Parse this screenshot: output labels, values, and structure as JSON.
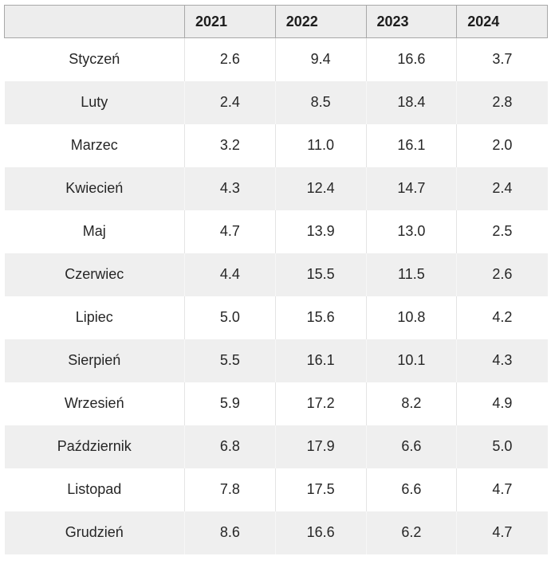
{
  "table": {
    "columns": [
      "",
      "2021",
      "2022",
      "2023",
      "2024"
    ],
    "rows": [
      {
        "month": "Styczeń",
        "values": [
          "2.6",
          "9.4",
          "16.6",
          "3.7"
        ]
      },
      {
        "month": "Luty",
        "values": [
          "2.4",
          "8.5",
          "18.4",
          "2.8"
        ]
      },
      {
        "month": "Marzec",
        "values": [
          "3.2",
          "11.0",
          "16.1",
          "2.0"
        ]
      },
      {
        "month": "Kwiecień",
        "values": [
          "4.3",
          "12.4",
          "14.7",
          "2.4"
        ]
      },
      {
        "month": "Maj",
        "values": [
          "4.7",
          "13.9",
          "13.0",
          "2.5"
        ]
      },
      {
        "month": "Czerwiec",
        "values": [
          "4.4",
          "15.5",
          "11.5",
          "2.6"
        ]
      },
      {
        "month": "Lipiec",
        "values": [
          "5.0",
          "15.6",
          "10.8",
          "4.2"
        ]
      },
      {
        "month": "Sierpień",
        "values": [
          "5.5",
          "16.1",
          "10.1",
          "4.3"
        ]
      },
      {
        "month": "Wrzesień",
        "values": [
          "5.9",
          "17.2",
          "8.2",
          "4.9"
        ]
      },
      {
        "month": "Październik",
        "values": [
          "6.8",
          "17.9",
          "6.6",
          "5.0"
        ]
      },
      {
        "month": "Listopad",
        "values": [
          "7.8",
          "17.5",
          "6.6",
          "4.7"
        ]
      },
      {
        "month": "Grudzień",
        "values": [
          "8.6",
          "16.6",
          "6.2",
          "4.7"
        ]
      }
    ]
  },
  "colors": {
    "header_bg": "#ededed",
    "header_border": "#a8a8a8",
    "stripe_bg": "#efefef",
    "separator": "#e4e4e4",
    "text": "#242424"
  },
  "chart_data": {
    "type": "table",
    "categories": [
      "Styczeń",
      "Luty",
      "Marzec",
      "Kwiecień",
      "Maj",
      "Czerwiec",
      "Lipiec",
      "Sierpień",
      "Wrzesień",
      "Październik",
      "Listopad",
      "Grudzień"
    ],
    "series": [
      {
        "name": "2021",
        "values": [
          2.6,
          2.4,
          3.2,
          4.3,
          4.7,
          4.4,
          5.0,
          5.5,
          5.9,
          6.8,
          7.8,
          8.6
        ]
      },
      {
        "name": "2022",
        "values": [
          9.4,
          8.5,
          11.0,
          12.4,
          13.9,
          15.5,
          15.6,
          16.1,
          17.2,
          17.9,
          17.5,
          16.6
        ]
      },
      {
        "name": "2023",
        "values": [
          16.6,
          18.4,
          16.1,
          14.7,
          13.0,
          11.5,
          10.8,
          10.1,
          8.2,
          6.6,
          6.6,
          6.2
        ]
      },
      {
        "name": "2024",
        "values": [
          3.7,
          2.8,
          2.0,
          2.4,
          2.5,
          2.6,
          4.2,
          4.3,
          4.9,
          5.0,
          4.7,
          4.7
        ]
      }
    ],
    "title": "",
    "xlabel": "",
    "ylabel": ""
  }
}
